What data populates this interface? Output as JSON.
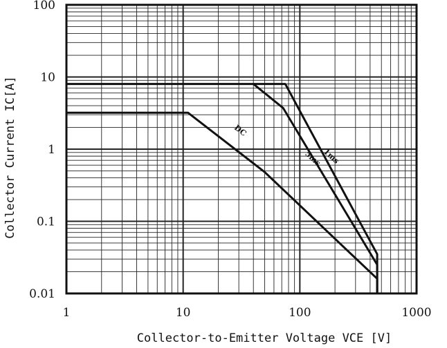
{
  "chart_data": {
    "type": "line",
    "title": "",
    "xlabel": "Collector-to-Emitter Voltage VCE [V]",
    "ylabel": "Collector Current IC[A]",
    "xscale": "log",
    "yscale": "log",
    "xlim": [
      1,
      1000
    ],
    "ylim": [
      0.01,
      100
    ],
    "grid": true,
    "legend": "none",
    "xticks": [
      "1",
      "10",
      "100",
      "1000"
    ],
    "yticks": [
      "100",
      "10",
      "1",
      "0.1",
      "0.01"
    ],
    "series": [
      {
        "name": "1ms",
        "points": [
          [
            1,
            8
          ],
          [
            75,
            8
          ],
          [
            460,
            0.035
          ],
          [
            460,
            0.01
          ]
        ]
      },
      {
        "name": "5ms",
        "points": [
          [
            40,
            8
          ],
          [
            72,
            3.7
          ],
          [
            460,
            0.025
          ],
          [
            460,
            0.01
          ]
        ]
      },
      {
        "name": "DC",
        "points": [
          [
            1,
            3.2
          ],
          [
            11,
            3.2
          ],
          [
            50,
            0.48
          ],
          [
            460,
            0.016
          ],
          [
            460,
            0.01
          ]
        ]
      }
    ]
  }
}
